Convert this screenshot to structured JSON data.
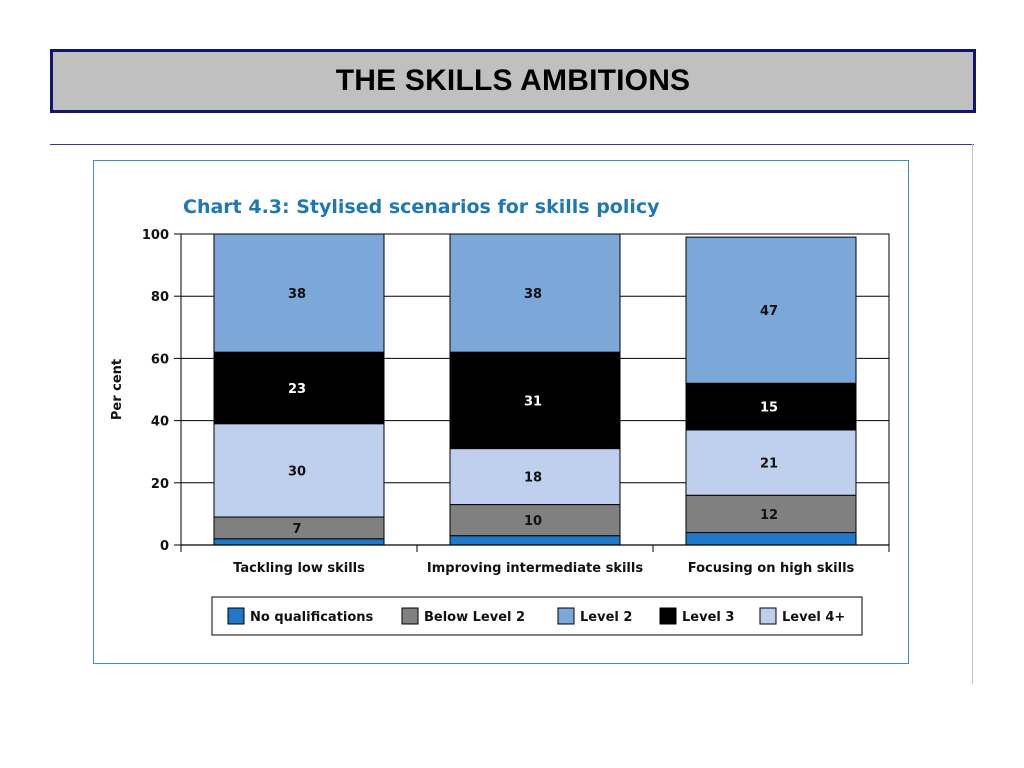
{
  "slide": {
    "title": "THE SKILLS AMBITIONS"
  },
  "chart_data": {
    "type": "bar",
    "stacked": true,
    "title": "Chart 4.3: Stylised scenarios for skills policy",
    "xlabel": "",
    "ylabel": "Per cent",
    "ylim": [
      0,
      100
    ],
    "yticks": [
      0,
      20,
      40,
      60,
      80,
      100
    ],
    "grid": true,
    "legend_position": "bottom",
    "categories": [
      "Tackling low skills",
      "Improving intermediate skills",
      "Focusing on high skills"
    ],
    "series": [
      {
        "name": "No qualifications",
        "color": "#1f78c8",
        "values": [
          2,
          3,
          4
        ],
        "labels": [
          "",
          "",
          ""
        ]
      },
      {
        "name": "Below Level 2",
        "color": "#808080",
        "values": [
          7,
          10,
          12
        ],
        "labels": [
          "7",
          "10",
          "12"
        ]
      },
      {
        "name": "Level 4+",
        "color": "#bfd0ee",
        "values": [
          30,
          18,
          21
        ],
        "labels": [
          "30",
          "18",
          "21"
        ]
      },
      {
        "name": "Level 3",
        "color": "#000000",
        "values": [
          23,
          31,
          15
        ],
        "labels": [
          "23",
          "31",
          "15"
        ]
      },
      {
        "name": "Level 2",
        "color": "#7ba7d9",
        "values": [
          38,
          38,
          47
        ],
        "labels": [
          "38",
          "38",
          "47"
        ]
      }
    ],
    "legend_order": [
      "No qualifications",
      "Below Level 2",
      "Level 2",
      "Level 3",
      "Level 4+"
    ]
  }
}
